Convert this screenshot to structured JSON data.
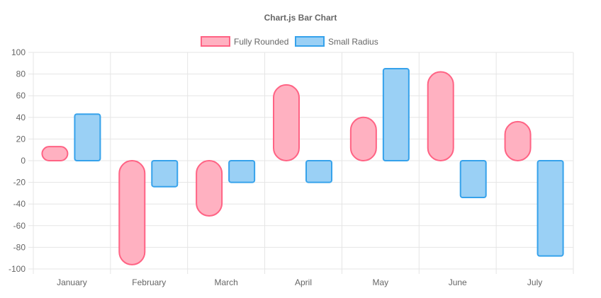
{
  "chart_data": {
    "type": "bar",
    "title": "Chart.js Bar Chart",
    "categories": [
      "January",
      "February",
      "March",
      "April",
      "May",
      "June",
      "July"
    ],
    "ylim": [
      -100,
      100
    ],
    "yticks": [
      100,
      80,
      60,
      40,
      20,
      0,
      -20,
      -40,
      -60,
      -80,
      -100
    ],
    "grid": true,
    "legend_position": "top",
    "series": [
      {
        "name": "Fully Rounded",
        "values": [
          13,
          -96,
          -51,
          70,
          40,
          82,
          36
        ],
        "fill": "#ffb1c1",
        "stroke": "#ff6384",
        "corner": "full"
      },
      {
        "name": "Small Radius",
        "values": [
          43,
          -24,
          -20,
          -20,
          85,
          -34,
          -88
        ],
        "fill": "#9ad0f5",
        "stroke": "#36a2eb",
        "corner": "small"
      }
    ]
  }
}
